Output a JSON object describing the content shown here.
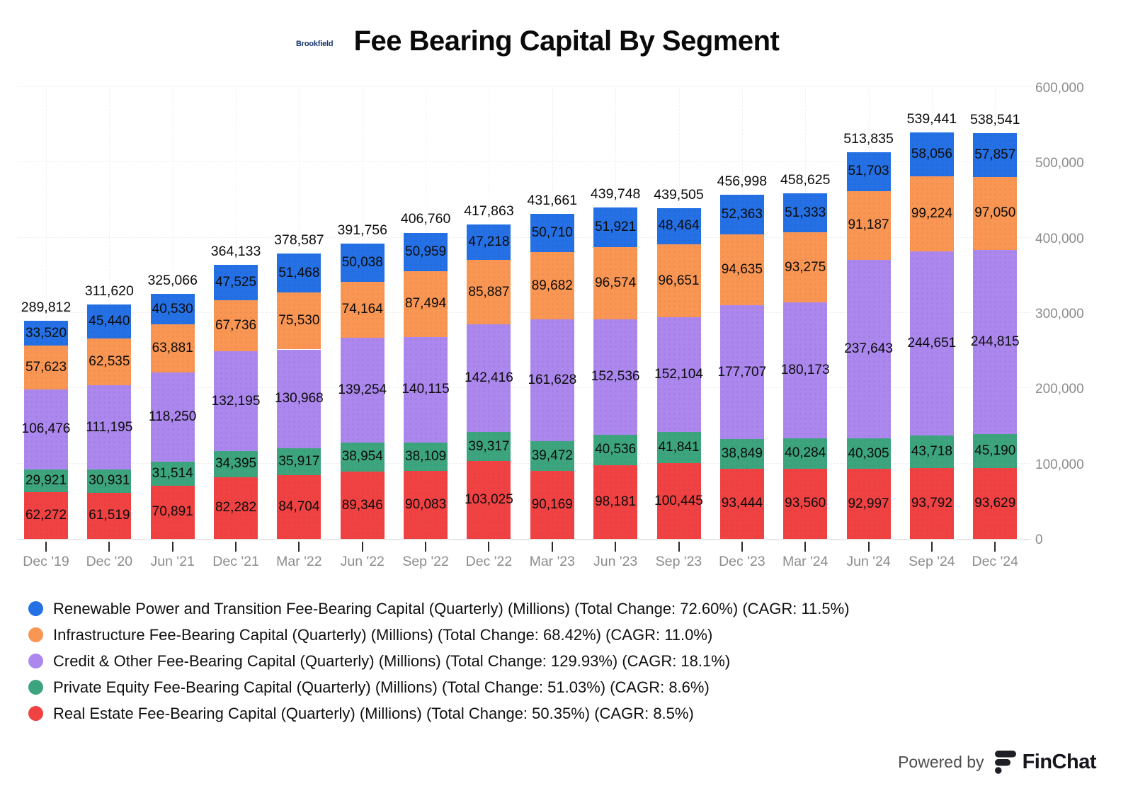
{
  "header": {
    "brand": "Brookfield",
    "title": "Fee Bearing Capital By Segment"
  },
  "footer": {
    "powered_by": "Powered by",
    "brand": "FinChat"
  },
  "colors": {
    "brookfield_navy": "#16356c",
    "finchat_dark": "#1f2026",
    "axis_text": "#8c8c8c",
    "label_text": "#0c0c0c"
  },
  "chart_data": {
    "type": "bar",
    "stacked": true,
    "grid": true,
    "legend_position": "bottom",
    "ylim": [
      0,
      600000
    ],
    "yticks": [
      0,
      100000,
      200000,
      300000,
      400000,
      500000,
      600000
    ],
    "categories": [
      "Dec '19",
      "Dec '20",
      "Jun '21",
      "Dec '21",
      "Mar '22",
      "Jun '22",
      "Sep '22",
      "Dec '22",
      "Mar '23",
      "Jun '23",
      "Sep '23",
      "Dec '23",
      "Mar '24",
      "Jun '24",
      "Sep '24",
      "Dec '24"
    ],
    "totals": [
      289812,
      311620,
      325066,
      364133,
      378587,
      391756,
      406760,
      417863,
      431661,
      439748,
      439505,
      456998,
      458625,
      513835,
      539441,
      538541
    ],
    "series": [
      {
        "key": "renewable-power-transition",
        "name": "Renewable Power and Transition Fee-Bearing Capital (Quarterly) (Millions) (Total Change: 72.60%) (CAGR: 11.5%)",
        "color": "#2470e4",
        "values": [
          33520,
          45440,
          40530,
          47525,
          51468,
          50038,
          50959,
          47218,
          50710,
          51921,
          48464,
          52363,
          51333,
          51703,
          58056,
          57857
        ]
      },
      {
        "key": "infrastructure",
        "name": "Infrastructure Fee-Bearing Capital (Quarterly) (Millions) (Total Change: 68.42%) (CAGR: 11.0%)",
        "color": "#fa9653",
        "values": [
          57623,
          62535,
          63881,
          67736,
          75530,
          74164,
          87494,
          85887,
          89682,
          96574,
          96651,
          94635,
          93275,
          91187,
          99224,
          97050
        ]
      },
      {
        "key": "credit-other",
        "name": "Credit & Other Fee-Bearing Capital (Quarterly) (Millions) (Total Change: 129.93%) (CAGR: 18.1%)",
        "color": "#ab87ee",
        "values": [
          106476,
          111195,
          118250,
          132195,
          130968,
          139254,
          140115,
          142416,
          161628,
          152536,
          152104,
          177707,
          180173,
          237643,
          244651,
          244815
        ]
      },
      {
        "key": "private-equity",
        "name": "Private Equity Fee-Bearing Capital (Quarterly) (Millions) (Total Change: 51.03%) (CAGR: 8.6%)",
        "color": "#3da57e",
        "values": [
          29921,
          30931,
          31514,
          34395,
          35917,
          38954,
          38109,
          39317,
          39472,
          40536,
          41841,
          38849,
          40284,
          40305,
          43718,
          45190
        ]
      },
      {
        "key": "real-estate",
        "name": "Real Estate Fee-Bearing Capital (Quarterly) (Millions) (Total Change: 50.35%) (CAGR: 8.5%)",
        "color": "#f14243",
        "values": [
          62272,
          61519,
          70891,
          82282,
          84704,
          89346,
          90083,
          103025,
          90169,
          98181,
          100445,
          93444,
          93560,
          92997,
          93792,
          93629
        ]
      }
    ]
  }
}
